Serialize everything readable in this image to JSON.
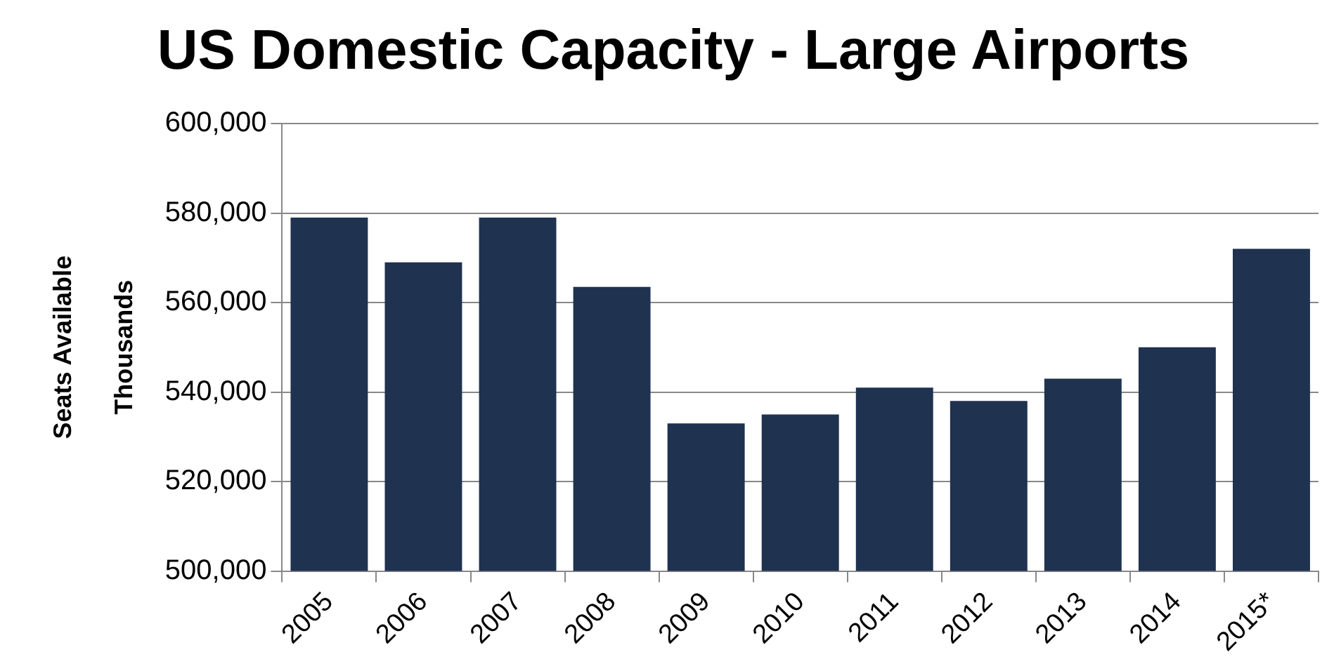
{
  "chart_data": {
    "type": "bar",
    "title": "US Domestic Capacity - Large Airports",
    "ylabel": "Seats Available",
    "annotations": [
      "Thousands"
    ],
    "categories": [
      "2005",
      "2006",
      "2007",
      "2008",
      "2009",
      "2010",
      "2011",
      "2012",
      "2013",
      "2014",
      "2015*"
    ],
    "values": [
      579000,
      569000,
      579000,
      563500,
      533000,
      535000,
      541000,
      538000,
      543000,
      550000,
      572000
    ],
    "color": "#1f3250",
    "ylim": [
      500000,
      600000
    ],
    "yticks": [
      {
        "value": 500000,
        "label": "500,000"
      },
      {
        "value": 520000,
        "label": "520,000"
      },
      {
        "value": 540000,
        "label": "540,000"
      },
      {
        "value": 560000,
        "label": "560,000"
      },
      {
        "value": 580000,
        "label": "580,000"
      },
      {
        "value": 600000,
        "label": "600,000"
      }
    ],
    "grid": "y",
    "legend": false
  }
}
